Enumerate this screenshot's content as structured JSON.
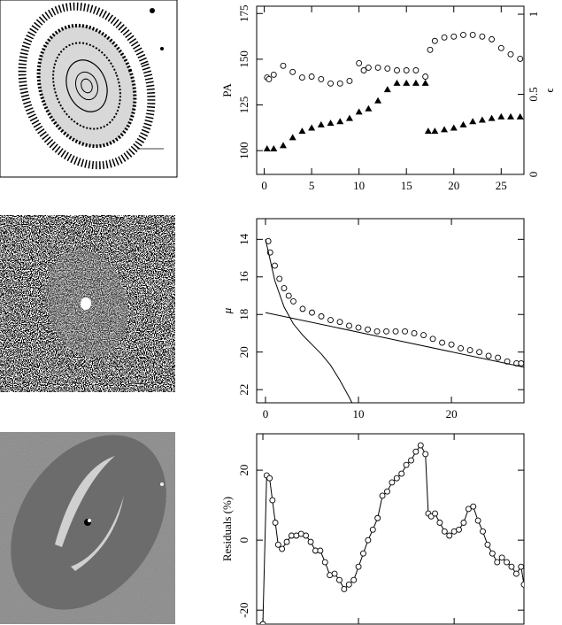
{
  "chart_data": [
    {
      "type": "scatter",
      "ylabel": "PA",
      "y2label": "ϵ",
      "xlim": [
        -0.8,
        27.4
      ],
      "xticks": [
        0,
        5,
        10,
        15,
        20,
        25
      ],
      "ylim": [
        87,
        179
      ],
      "yticks": [
        100,
        125,
        150,
        175
      ],
      "y2lim": [
        0,
        1.05
      ],
      "y2ticks": [
        0,
        0.5,
        1
      ],
      "series": [
        {
          "color": "#000000",
          "marker": "circle",
          "line": false,
          "x": [
            0.3,
            0.5,
            1,
            2,
            3,
            4,
            5,
            6,
            7,
            8,
            9,
            10,
            10.5,
            11,
            12,
            13,
            14,
            15,
            16,
            17,
            17.5,
            18,
            19,
            20,
            21,
            22,
            23,
            24,
            25,
            26,
            27
          ],
          "values": [
            140.0,
            139.1,
            141.5,
            146.4,
            143.0,
            140.0,
            140.5,
            139.1,
            136.7,
            136.7,
            138.1,
            147.8,
            143.9,
            145.4,
            145.4,
            144.9,
            143.9,
            143.9,
            143.9,
            140.5,
            155.1,
            160.0,
            161.9,
            162.4,
            163.3,
            163.3,
            162.4,
            160.9,
            156.1,
            152.7,
            150.2
          ]
        },
        {
          "color": "#000000",
          "marker": "triangle",
          "line": false,
          "axis": "y2",
          "x": [
            0.3,
            1,
            2,
            3,
            4,
            5,
            6,
            7,
            8,
            9,
            10,
            11,
            12,
            13,
            14,
            15,
            16,
            17,
            17.3,
            18,
            19,
            20,
            21,
            22,
            23,
            24,
            25,
            26,
            27
          ],
          "values": [
            0.16,
            0.16,
            0.18,
            0.23,
            0.27,
            0.29,
            0.31,
            0.32,
            0.33,
            0.35,
            0.39,
            0.41,
            0.46,
            0.53,
            0.57,
            0.57,
            0.57,
            0.57,
            0.27,
            0.27,
            0.28,
            0.29,
            0.31,
            0.33,
            0.34,
            0.35,
            0.36,
            0.36,
            0.36
          ]
        }
      ]
    },
    {
      "type": "scatter",
      "ylabel": "μ",
      "xlim": [
        -0.95,
        27.8
      ],
      "xticks": [
        0,
        10,
        20
      ],
      "ylim": [
        22.7,
        12.9
      ],
      "yticks": [
        14,
        16,
        18,
        20,
        22
      ],
      "series": [
        {
          "color": "#000000",
          "marker": "circle",
          "line": false,
          "x": [
            0.3,
            0.5,
            1,
            1.5,
            2,
            2.5,
            3,
            4,
            5,
            6,
            7,
            8,
            9,
            10,
            11,
            12,
            13,
            14,
            15,
            16,
            17,
            18,
            19,
            20,
            21,
            22,
            23,
            24,
            25,
            26,
            27,
            27.5
          ],
          "values": [
            14.1,
            14.7,
            15.4,
            16.1,
            16.6,
            17.0,
            17.3,
            17.7,
            17.9,
            18.1,
            18.3,
            18.4,
            18.6,
            18.7,
            18.8,
            18.9,
            18.9,
            18.9,
            18.9,
            19.0,
            19.1,
            19.3,
            19.5,
            19.6,
            19.8,
            19.9,
            20.0,
            20.2,
            20.3,
            20.5,
            20.6,
            20.6
          ]
        },
        {
          "color": "#000000",
          "marker": "none",
          "line": true,
          "x": [
            0,
            27.8
          ],
          "values": [
            17.9,
            20.8
          ]
        },
        {
          "color": "#000000",
          "marker": "none",
          "line": true,
          "x": [
            0,
            1,
            2,
            3,
            4,
            5,
            6,
            7,
            8,
            9,
            9.3
          ],
          "values": [
            14,
            16.2,
            17.6,
            18.5,
            19.1,
            19.6,
            20.1,
            20.7,
            21.5,
            22.4,
            22.7
          ]
        }
      ]
    },
    {
      "type": "line",
      "ylabel": "Residuals (%)",
      "xlim": [
        -0.65,
        27.3
      ],
      "xticks": [
        0,
        10,
        20
      ],
      "ylim": [
        -24,
        30.4
      ],
      "yticks": [
        -20,
        0,
        20
      ],
      "series": [
        {
          "color": "#000000",
          "marker": "circle",
          "line": true,
          "x": [
            0,
            0.4,
            0.7,
            1,
            1.3,
            1.6,
            2,
            2.5,
            3,
            3.5,
            4,
            4.5,
            5,
            5.5,
            6,
            6.5,
            7,
            7.5,
            8,
            8.5,
            9,
            9.5,
            10,
            10.5,
            11,
            11.5,
            12,
            12.5,
            13,
            13.5,
            14,
            14.5,
            15,
            15.5,
            16,
            16.5,
            17,
            17.3,
            17.6,
            18,
            18.5,
            19,
            19.5,
            20,
            20.5,
            21,
            21.5,
            22,
            22.5,
            23,
            23.5,
            24,
            24.5,
            25,
            25.5,
            26,
            26.5,
            27,
            27.3
          ],
          "values": [
            -24,
            18.5,
            17.7,
            11.4,
            5,
            -1.3,
            -2.5,
            -0.5,
            1.3,
            1.3,
            1.8,
            1.3,
            -0.5,
            -3,
            -3,
            -6.3,
            -10,
            -9.6,
            -11.4,
            -14,
            -12.7,
            -11.4,
            -7.6,
            -3.8,
            0,
            3,
            6.3,
            12.7,
            13.9,
            16.5,
            17.7,
            19,
            21.5,
            22.8,
            25.3,
            27.1,
            24.6,
            7.6,
            6.8,
            7.6,
            5,
            2.5,
            1.3,
            2.5,
            3,
            5,
            8.9,
            9.6,
            5.6,
            2.5,
            -1.3,
            -3.8,
            -6.3,
            -5,
            -6.3,
            -7.6,
            -9.6,
            -7.6,
            -12.7
          ]
        }
      ]
    }
  ]
}
